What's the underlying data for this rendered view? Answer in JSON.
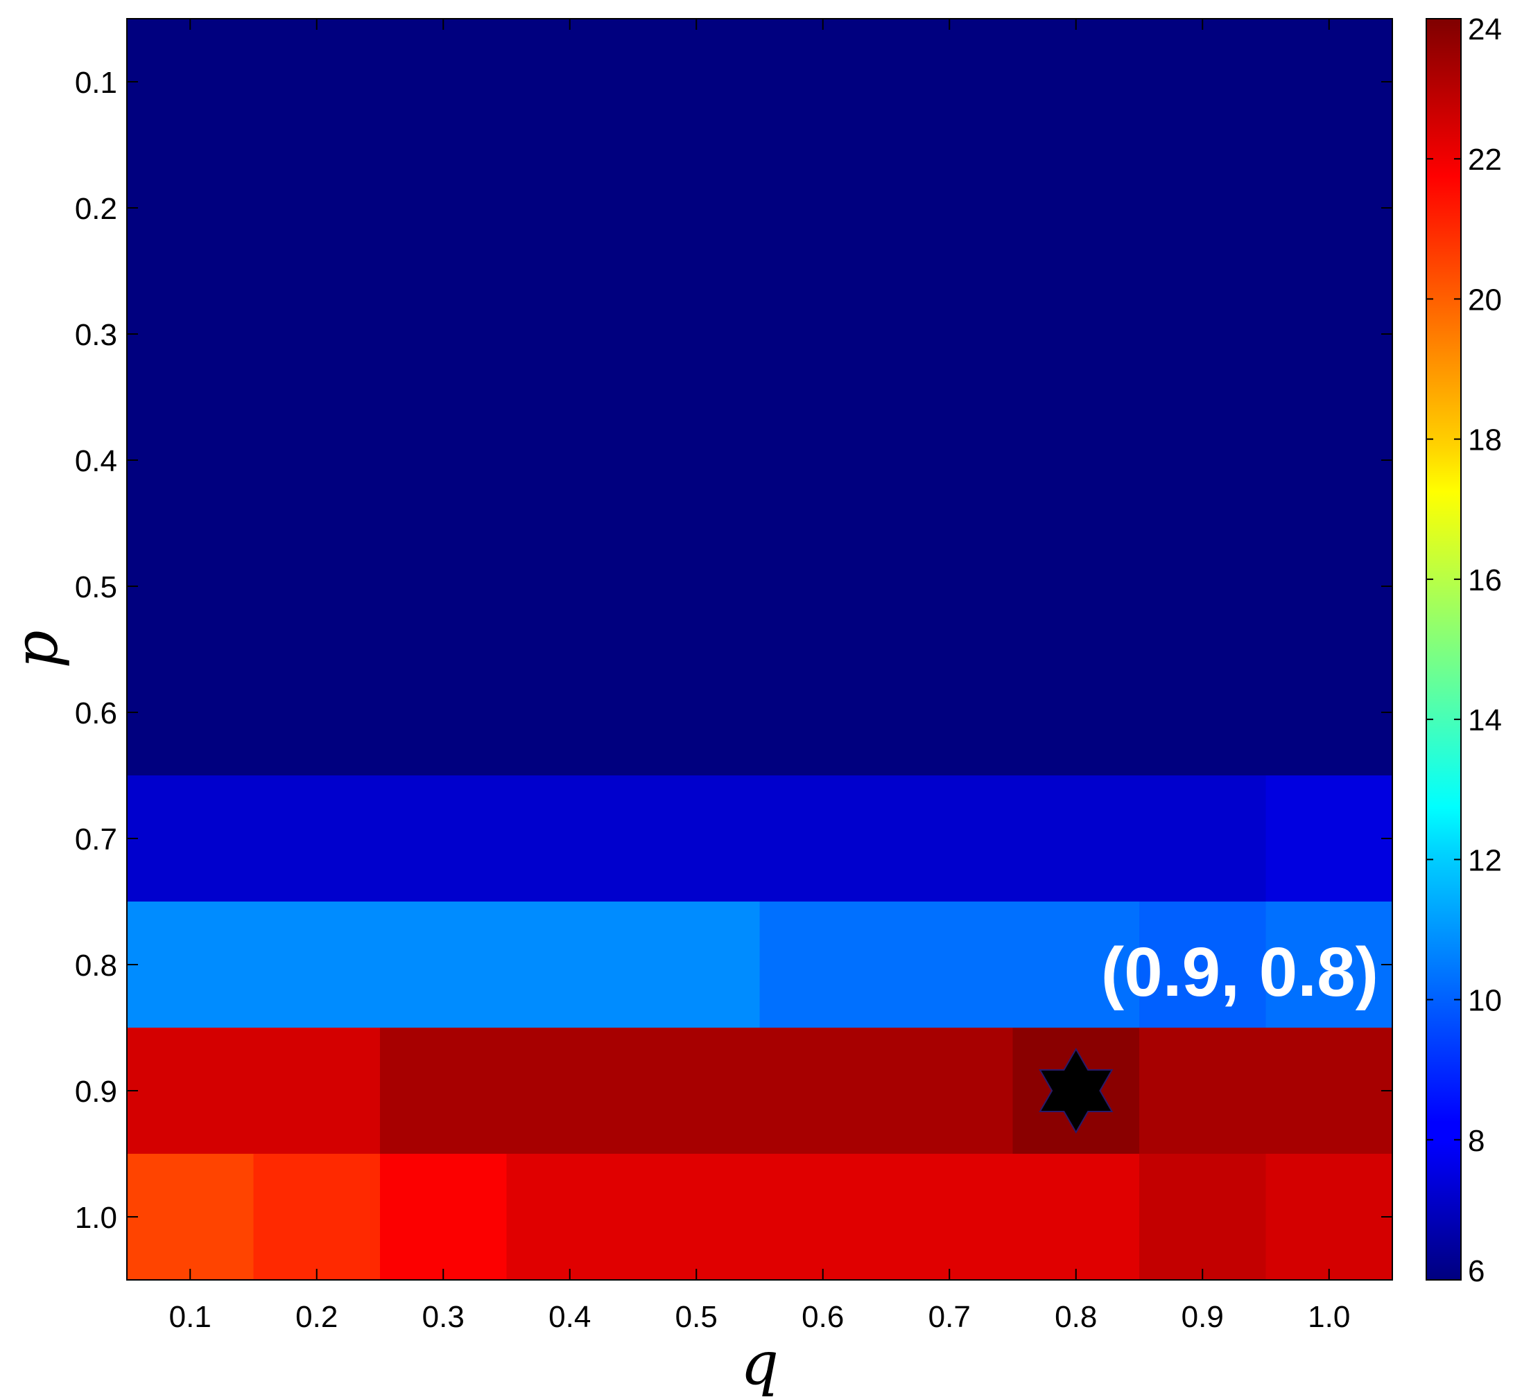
{
  "chart_data": {
    "type": "heatmap",
    "x": [
      0.1,
      0.2,
      0.3,
      0.4,
      0.5,
      0.6,
      0.7,
      0.8,
      0.9,
      1.0
    ],
    "y": [
      0.1,
      0.2,
      0.3,
      0.4,
      0.5,
      0.6,
      0.7,
      0.8,
      0.9,
      1.0
    ],
    "x_tick_labels": [
      "0.1",
      "0.2",
      "0.3",
      "0.4",
      "0.5",
      "0.6",
      "0.7",
      "0.8",
      "0.9",
      "1.0"
    ],
    "y_tick_labels": [
      "0.1",
      "0.2",
      "0.3",
      "0.4",
      "0.5",
      "0.6",
      "0.7",
      "0.8",
      "0.9",
      "1.0"
    ],
    "xlabel": "q",
    "ylabel": "p",
    "title": "",
    "xlim": [
      0.05,
      1.05
    ],
    "ylim": [
      1.05,
      0.05
    ],
    "values": [
      [
        6,
        6,
        6,
        6,
        6,
        6,
        6,
        6,
        6,
        6
      ],
      [
        6,
        6,
        6,
        6,
        6,
        6,
        6,
        6,
        6,
        6
      ],
      [
        6,
        6,
        6,
        6,
        6,
        6,
        6,
        6,
        6,
        6
      ],
      [
        6,
        6,
        6,
        6,
        6,
        6,
        6,
        6,
        6,
        6
      ],
      [
        6,
        6,
        6,
        6,
        6,
        6,
        6,
        6,
        6,
        6
      ],
      [
        6,
        6,
        6,
        6,
        6,
        6,
        6,
        6,
        6,
        6
      ],
      [
        7.2,
        7.2,
        7.2,
        7.2,
        7.2,
        7.2,
        7.2,
        7.2,
        7.2,
        7.5
      ],
      [
        10.8,
        10.8,
        10.8,
        10.8,
        10.8,
        10.3,
        10.3,
        10.3,
        10.0,
        10.3
      ],
      [
        22.5,
        22.5,
        23.3,
        23.3,
        23.3,
        23.3,
        23.3,
        23.8,
        23.3,
        23.3
      ],
      [
        20.5,
        21.0,
        21.8,
        22.3,
        22.3,
        22.3,
        22.3,
        22.3,
        22.8,
        22.5
      ]
    ],
    "colorbar": {
      "min": 6,
      "max": 24,
      "ticks": [
        6,
        8,
        10,
        12,
        14,
        16,
        18,
        20,
        22,
        24
      ],
      "colormap": "jet"
    },
    "marker": {
      "shape": "hexagram",
      "x": 0.8,
      "y": 0.9,
      "color": "#000000"
    },
    "annotation": {
      "text": "(0.9, 0.8)",
      "x": 0.9,
      "y": 0.8,
      "color": "#ffffff"
    },
    "grid": false,
    "legend": "none"
  }
}
